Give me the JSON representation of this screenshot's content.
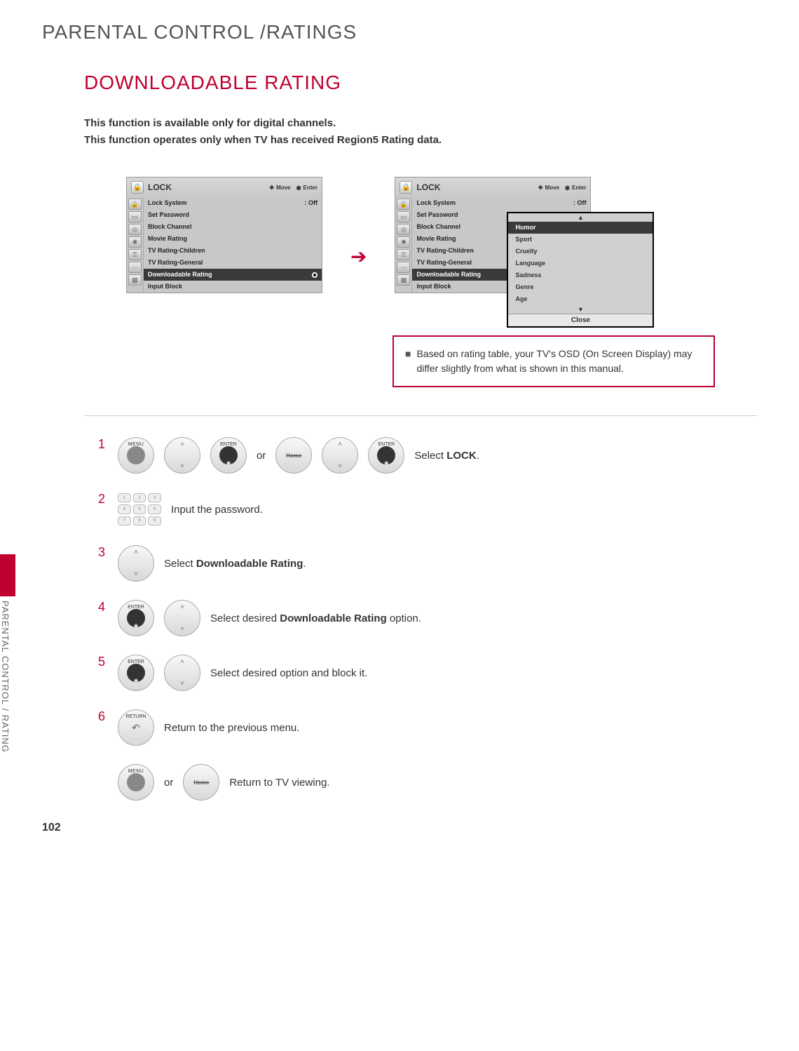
{
  "page_title": "PARENTAL CONTROL /RATINGS",
  "section_title": "DOWNLOADABLE RATING",
  "intro_line1": "This function is available only for digital channels.",
  "intro_line2": "This function operates only when TV has received Region5 Rating data.",
  "menu": {
    "title": "LOCK",
    "move": "Move",
    "enter": "Enter",
    "items": [
      {
        "label": "Lock System",
        "right": ": Off"
      },
      {
        "label": "Set Password",
        "right": ""
      },
      {
        "label": "Block Channel",
        "right": ""
      },
      {
        "label": "Movie Rating",
        "right": ""
      },
      {
        "label": "TV Rating-Children",
        "right": ""
      },
      {
        "label": "TV Rating-General",
        "right": ""
      },
      {
        "label": "Downloadable Rating",
        "right": "",
        "highlight": true,
        "radio": true
      },
      {
        "label": "Input Block",
        "right": ""
      }
    ]
  },
  "popup": {
    "items": [
      {
        "label": "Humor",
        "highlight": true,
        "radio": true
      },
      {
        "label": "Sport"
      },
      {
        "label": "Cruelty"
      },
      {
        "label": "Language"
      },
      {
        "label": "Sadness"
      },
      {
        "label": "Genre"
      },
      {
        "label": "Age"
      }
    ],
    "close": "Close"
  },
  "note": "Based on rating table, your TV's OSD (On Screen Display) may differ slightly from what is shown in this manual.",
  "steps": {
    "s1": {
      "num": "1",
      "or": "or",
      "text_pre": "Select ",
      "text_bold": "LOCK",
      "text_post": "."
    },
    "s2": {
      "num": "2",
      "text": "Input the password."
    },
    "s3": {
      "num": "3",
      "text_pre": "Select ",
      "text_bold": "Downloadable Rating",
      "text_post": "."
    },
    "s4": {
      "num": "4",
      "text_pre": "Select desired ",
      "text_bold": "Downloadable Rating",
      "text_post": " option."
    },
    "s5": {
      "num": "5",
      "text": "Select desired option and block it."
    },
    "s6": {
      "num": "6",
      "text": "Return to the previous menu."
    },
    "s7": {
      "or": "or",
      "text": "Return to TV viewing."
    }
  },
  "buttons": {
    "menu": "MENU",
    "enter": "ENTER",
    "home": "Home",
    "return": "RETURN"
  },
  "side_label": "PARENTAL CONTROL / RATING",
  "page_number": "102",
  "colors": {
    "accent": "#c00030",
    "menu_bg": "#c8c8c8",
    "highlight_bg": "#3a3a3a"
  }
}
